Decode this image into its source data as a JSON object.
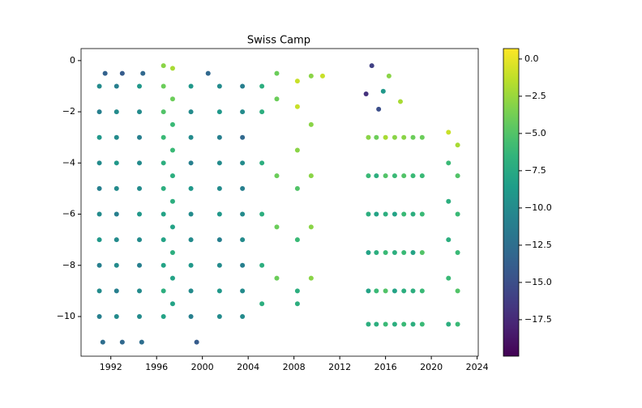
{
  "chart_data": {
    "type": "scatter",
    "title": "Swiss Camp",
    "xlim": [
      1989.4,
      2024.1
    ],
    "xticks": [
      1992,
      1996,
      2000,
      2004,
      2008,
      2012,
      2016,
      2020,
      2024
    ],
    "ylim": [
      -11.55,
      0.47
    ],
    "yticks": [
      0,
      {
        "value": -2,
        "label": "−2"
      },
      {
        "value": -4,
        "label": "−4"
      },
      {
        "value": -6,
        "label": "−6"
      },
      {
        "value": -8,
        "label": "−8"
      },
      {
        "value": -10,
        "label": "−10"
      }
    ],
    "colormap": "viridis",
    "clim": [
      -19.95,
      0.7
    ],
    "cticks": [
      {
        "value": 0,
        "label": "0.0"
      },
      {
        "value": -2.5,
        "label": "−2.5"
      },
      {
        "value": -5,
        "label": "−5.0"
      },
      {
        "value": -7.5,
        "label": "−7.5"
      },
      {
        "value": -10,
        "label": "−10.0"
      },
      {
        "value": -12.5,
        "label": "−12.5"
      },
      {
        "value": -15,
        "label": "−15.0"
      },
      {
        "value": -17.5,
        "label": "−17.5"
      }
    ],
    "series": [
      {
        "x": [
          1991,
          1991,
          1991,
          1991,
          1991,
          1991,
          1991,
          1991,
          1991,
          1991
        ],
        "y": [
          -1,
          -2,
          -3,
          -4,
          -5,
          -6,
          -7,
          -8,
          -9,
          -10
        ],
        "c": [
          -10,
          -11,
          -9,
          -10,
          -11,
          -10,
          -9,
          -11,
          -10,
          -11
        ]
      },
      {
        "x": [
          1992.5,
          1992.5,
          1992.5,
          1992.5,
          1992.5,
          1992.5,
          1992.5,
          1992.5,
          1992.5,
          1992.5
        ],
        "y": [
          -1,
          -2,
          -3,
          -4,
          -5,
          -6,
          -7,
          -8,
          -9,
          -10
        ],
        "c": [
          -11,
          -10,
          -10,
          -9,
          -10,
          -11,
          -10,
          -10,
          -11,
          -10
        ]
      },
      {
        "x": [
          1994.5,
          1994.5,
          1994.5,
          1994.5,
          1994.5,
          1994.5,
          1994.5,
          1994.5,
          1994.5,
          1994.5
        ],
        "y": [
          -1,
          -2,
          -3,
          -4,
          -5,
          -6,
          -7,
          -8,
          -9,
          -10
        ],
        "c": [
          -9,
          -10,
          -11,
          -10,
          -10,
          -9,
          -10,
          -11,
          -10,
          -10
        ]
      },
      {
        "x": [
          1991.5,
          1993,
          1994.8,
          1991.3,
          1993,
          1994.7
        ],
        "y": [
          -0.5,
          -0.5,
          -0.5,
          -11,
          -11,
          -11
        ],
        "c": [
          -13.5,
          -14,
          -13,
          -12.5,
          -13,
          -12.5
        ]
      },
      {
        "x": [
          1996.6,
          1996.6,
          1996.6,
          1996.6,
          1996.6,
          1996.6,
          1996.6,
          1996.6,
          1996.6,
          1996.6,
          1996.6
        ],
        "y": [
          -0.2,
          -1,
          -2,
          -3,
          -4,
          -5,
          -6,
          -7,
          -8,
          -9,
          -10
        ],
        "c": [
          -3,
          -4,
          -5,
          -6,
          -7,
          -7,
          -8,
          -8,
          -8,
          -7,
          -8
        ]
      },
      {
        "x": [
          1997.4,
          1997.4,
          1997.4,
          1997.4,
          1997.4,
          1997.4,
          1997.4,
          1997.4,
          1997.4,
          1997.4
        ],
        "y": [
          -0.3,
          -1.5,
          -2.5,
          -3.5,
          -4.5,
          -5.5,
          -6.5,
          -7.5,
          -8.5,
          -9.5
        ],
        "c": [
          -2,
          -4,
          -6,
          -6,
          -7,
          -7,
          -8,
          -7,
          -8,
          -8
        ]
      },
      {
        "x": [
          1999,
          1999,
          1999,
          1999,
          1999,
          1999,
          1999,
          1999,
          1999,
          1999
        ],
        "y": [
          -1,
          -2,
          -3,
          -4,
          -5,
          -6,
          -7,
          -8,
          -9,
          -10
        ],
        "c": [
          -9,
          -10,
          -10,
          -11,
          -9,
          -10,
          -10,
          -9,
          -10,
          -11
        ]
      },
      {
        "x": [
          2001.5,
          2001.5,
          2001.5,
          2001.5,
          2001.5,
          2001.5,
          2001.5,
          2001.5,
          2001.5,
          2001.5
        ],
        "y": [
          -1,
          -2,
          -3,
          -4,
          -5,
          -6,
          -7,
          -8,
          -9,
          -10
        ],
        "c": [
          -10,
          -9,
          -11,
          -10,
          -10,
          -9,
          -11,
          -10,
          -9,
          -10
        ]
      },
      {
        "x": [
          2003.5,
          2003.5,
          2003.5,
          2003.5,
          2003.5,
          2003.5,
          2003.5,
          2003.5,
          2003.5,
          2003.5
        ],
        "y": [
          -1,
          -2,
          -3,
          -4,
          -5,
          -6,
          -7,
          -8,
          -9,
          -10
        ],
        "c": [
          -11,
          -10,
          -13,
          -10,
          -11,
          -10,
          -10,
          -11,
          -10,
          -10
        ]
      },
      {
        "x": [
          2000.5,
          1999.5
        ],
        "y": [
          -0.5,
          -11
        ],
        "c": [
          -13,
          -14
        ]
      },
      {
        "x": [
          2005.2,
          2005.2,
          2005.2,
          2005.2,
          2005.2,
          2005.2,
          2006.5,
          2006.5,
          2006.5,
          2006.5,
          2006.5,
          2008.3,
          2008.3,
          2008.3,
          2008.3,
          2008.3,
          2008.3,
          2008.3,
          2009.5,
          2009.5,
          2009.5,
          2009.5,
          2009.5,
          2010.5
        ],
        "y": [
          -1,
          -2,
          -4,
          -6,
          -8,
          -9.5,
          -0.5,
          -1.5,
          -4.5,
          -6.5,
          -8.5,
          -0.8,
          -1.8,
          -3.5,
          -5,
          -7,
          -9,
          -9.5,
          -0.6,
          -2.5,
          -4.5,
          -6.5,
          -8.5,
          -0.6
        ],
        "c": [
          -7,
          -7,
          -7,
          -7,
          -7,
          -7,
          -4,
          -4,
          -4,
          -4,
          -4,
          -1,
          -1,
          -3,
          -5,
          -6,
          -7,
          -7,
          -3,
          -3,
          -3,
          -3,
          -3,
          -1
        ]
      },
      {
        "x": [
          2014.5,
          2014.5,
          2014.5,
          2014.5,
          2014.5,
          2014.5
        ],
        "y": [
          -3,
          -4.5,
          -6,
          -7.5,
          -9,
          -10.3
        ],
        "c": [
          -3,
          -6,
          -7,
          -8,
          -8,
          -7
        ]
      },
      {
        "x": [
          2015.2,
          2015.2,
          2015.2,
          2015.2,
          2015.2,
          2015.2
        ],
        "y": [
          -3,
          -4.5,
          -6,
          -7.5,
          -9,
          -10.3
        ],
        "c": [
          -4,
          -7,
          -8,
          -7,
          -6,
          -7
        ]
      },
      {
        "x": [
          2016,
          2016,
          2016,
          2016,
          2016,
          2016
        ],
        "y": [
          -3,
          -4.5,
          -6,
          -7.5,
          -9,
          -10.3
        ],
        "c": [
          -2,
          -5,
          -7,
          -6,
          -5,
          -6
        ]
      },
      {
        "x": [
          2016.8,
          2016.8,
          2016.8,
          2016.8,
          2016.8,
          2016.8
        ],
        "y": [
          -3,
          -4.5,
          -6,
          -7.5,
          -9,
          -10.3
        ],
        "c": [
          -3,
          -6,
          -8,
          -7,
          -8,
          -7
        ]
      },
      {
        "x": [
          2017.6,
          2017.6,
          2017.6,
          2017.6,
          2017.6,
          2017.6
        ],
        "y": [
          -3,
          -4.5,
          -6,
          -7.5,
          -9,
          -10.3
        ],
        "c": [
          -3,
          -5,
          -6,
          -6,
          -7,
          -6
        ]
      },
      {
        "x": [
          2018.4,
          2018.4,
          2018.4,
          2018.4,
          2018.4,
          2018.4
        ],
        "y": [
          -3,
          -4.5,
          -6,
          -7.5,
          -9,
          -10.3
        ],
        "c": [
          -4,
          -6,
          -7,
          -8,
          -7,
          -7
        ]
      },
      {
        "x": [
          2019.2,
          2019.2,
          2019.2,
          2019.2,
          2019.2,
          2019.2
        ],
        "y": [
          -3,
          -4.5,
          -6,
          -7.5,
          -9,
          -10.3
        ],
        "c": [
          -4,
          -6,
          -6,
          -5,
          -6,
          -6
        ]
      },
      {
        "x": [
          2014.8,
          2015.4,
          2015.8,
          2016.3,
          2017.3,
          2014.3
        ],
        "y": [
          -0.2,
          -1.9,
          -1.2,
          -0.6,
          -1.6,
          -1.3
        ],
        "c": [
          -16,
          -15,
          -9,
          -3,
          -2,
          -17
        ]
      },
      {
        "x": [
          2021.5,
          2021.5,
          2021.5,
          2021.5,
          2021.5,
          2021.5
        ],
        "y": [
          -2.8,
          -4,
          -5.5,
          -7,
          -8.5,
          -10.3
        ],
        "c": [
          -1,
          -6,
          -7,
          -7,
          -6,
          -7
        ]
      },
      {
        "x": [
          2022.3,
          2022.3,
          2022.3,
          2022.3,
          2022.3,
          2022.3
        ],
        "y": [
          -3.3,
          -4.5,
          -6,
          -7.5,
          -9,
          -10.3
        ],
        "c": [
          -2,
          -5,
          -6,
          -6,
          -5,
          -6
        ]
      }
    ]
  }
}
